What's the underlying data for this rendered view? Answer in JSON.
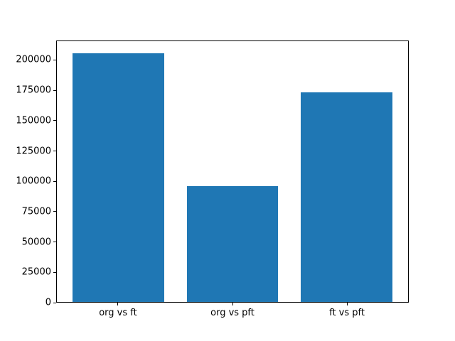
{
  "chart_data": {
    "type": "bar",
    "title": "",
    "xlabel": "",
    "ylabel": "",
    "categories": [
      "org vs ft",
      "org vs pft",
      "ft vs pft"
    ],
    "values": [
      205900,
      95800,
      173700
    ],
    "bar_color": "#1f77b4",
    "axis_color": "#000000",
    "background_color": "#ffffff",
    "ylim": [
      0,
      216100
    ],
    "yticks": [
      0,
      25000,
      50000,
      75000,
      100000,
      125000,
      150000,
      175000,
      200000
    ],
    "xlim": [
      -0.54,
      2.54
    ],
    "bar_width": 0.8,
    "grid": false,
    "legend": "none"
  }
}
